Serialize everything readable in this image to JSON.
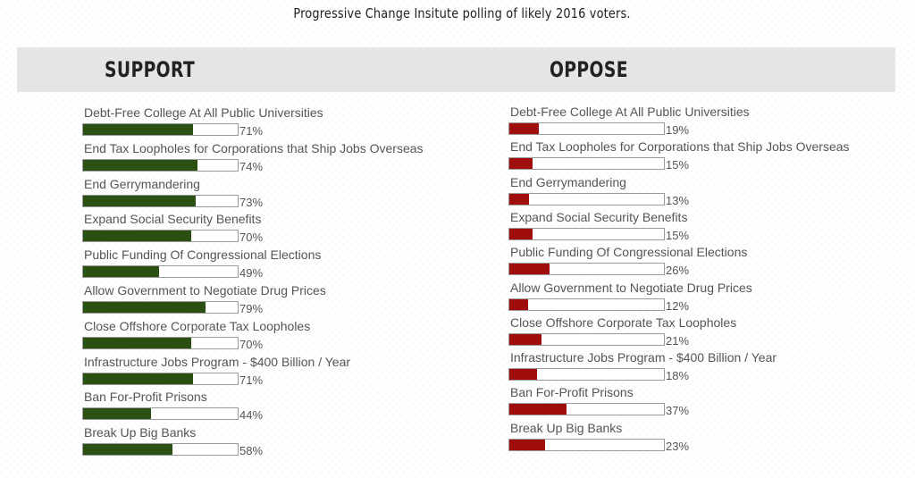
{
  "title": "Progressive Change Insitute polling of likely 2016 voters.",
  "colors": {
    "support": "#2a5013",
    "oppose": "#a00d0d",
    "header_band": "#e5e5e5"
  },
  "chart_data": [
    {
      "type": "bar",
      "title": "SUPPORT",
      "unit": "%",
      "categories": [
        "Debt-Free College At All Public Universities",
        "End Tax Loopholes for Corporations that Ship Jobs Overseas",
        "End Gerrymandering",
        "Expand Social Security Benefits",
        "Public Funding Of Congressional Elections",
        "Allow Government to Negotiate Drug Prices",
        "Close Offshore Corporate Tax Loopholes",
        "Infrastructure Jobs Program - $400 Billion / Year",
        "Ban For-Profit Prisons",
        "Break Up Big Banks"
      ],
      "values": [
        71,
        74,
        73,
        70,
        49,
        79,
        70,
        71,
        44,
        58
      ],
      "value_labels": [
        "71%",
        "74%",
        "73%",
        "70%",
        "49%",
        "79%",
        "70%",
        "71%",
        "44%",
        "58%"
      ],
      "ylim": [
        0,
        100
      ]
    },
    {
      "type": "bar",
      "title": "OPPOSE",
      "unit": "%",
      "categories": [
        "Debt-Free College At All Public Universities",
        "End Tax Loopholes for Corporations that Ship Jobs Overseas",
        "End Gerrymandering",
        "Expand Social Security Benefits",
        "Public Funding Of Congressional Elections",
        "Allow Government to Negotiate Drug Prices",
        "Close Offshore Corporate Tax Loopholes",
        "Infrastructure Jobs Program - $400 Billion / Year",
        "Ban For-Profit Prisons",
        "Break Up Big Banks"
      ],
      "values": [
        19,
        15,
        13,
        15,
        26,
        12,
        21,
        18,
        37,
        23
      ],
      "value_labels": [
        "19%",
        "15%",
        "13%",
        "15%",
        "26%",
        "12%",
        "21%",
        "18%",
        "37%",
        "23%"
      ],
      "ylim": [
        0,
        100
      ]
    }
  ]
}
